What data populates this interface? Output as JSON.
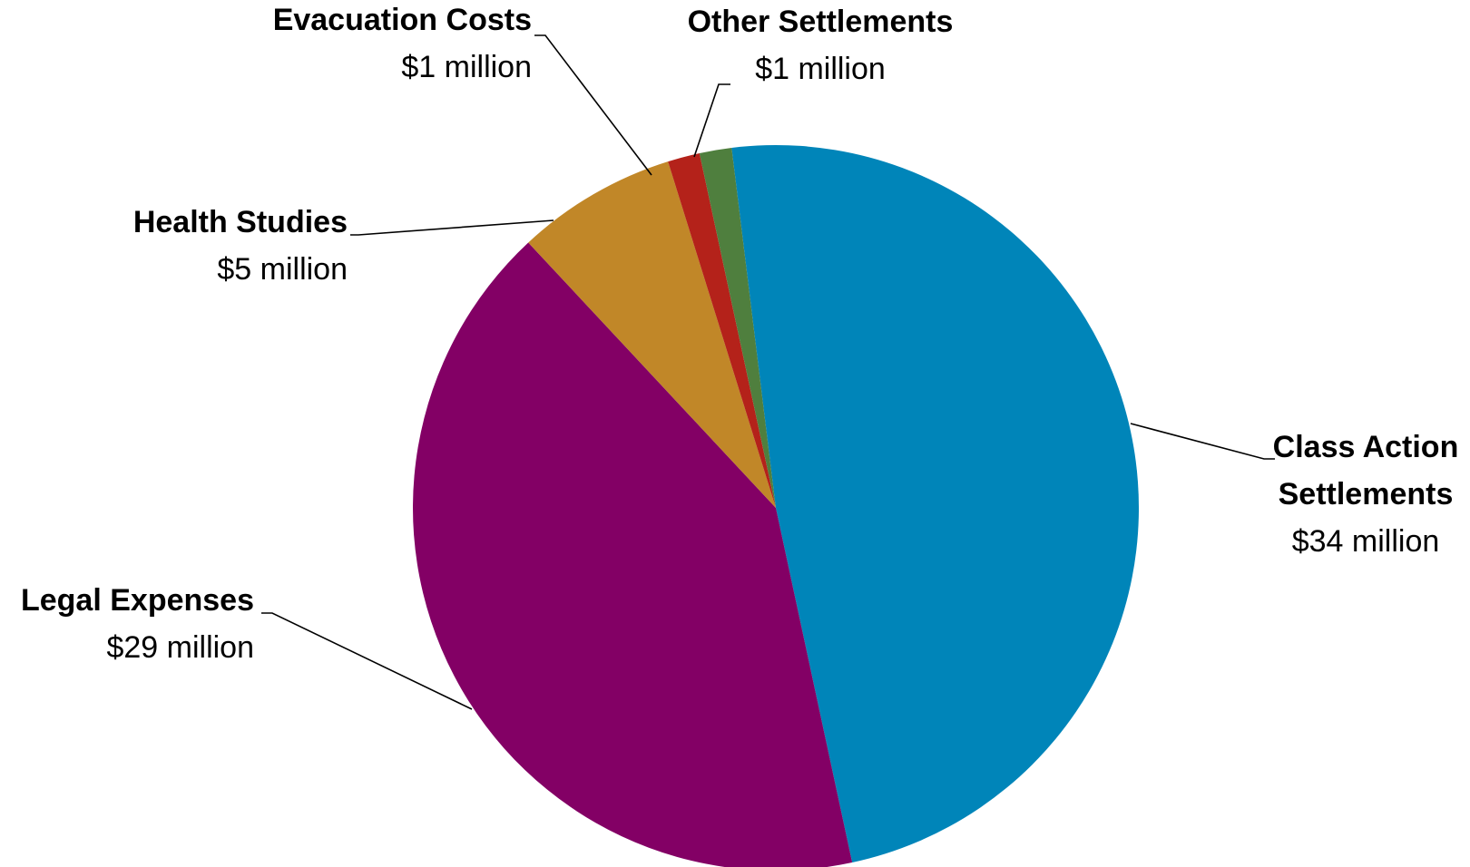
{
  "chart_data": {
    "type": "pie",
    "unit": "$ million",
    "slices": [
      {
        "label_lines": [
          "Class Action",
          "Settlements"
        ],
        "value": 34,
        "value_label": "$34 million",
        "color": "#0085b9"
      },
      {
        "label_lines": [
          "Legal Expenses"
        ],
        "value": 29,
        "value_label": "$29 million",
        "color": "#830065"
      },
      {
        "label_lines": [
          "Health Studies"
        ],
        "value": 5,
        "value_label": "$5 million",
        "color": "#c18728"
      },
      {
        "label_lines": [
          "Evacuation Costs"
        ],
        "value": 1,
        "value_label": "$1 million",
        "color": "#b4221a"
      },
      {
        "label_lines": [
          "Other Settlements"
        ],
        "value": 1,
        "value_label": "$1 million",
        "color": "#4f7f3e"
      }
    ],
    "legend": "none",
    "data_labels": "outside with leader lines"
  }
}
